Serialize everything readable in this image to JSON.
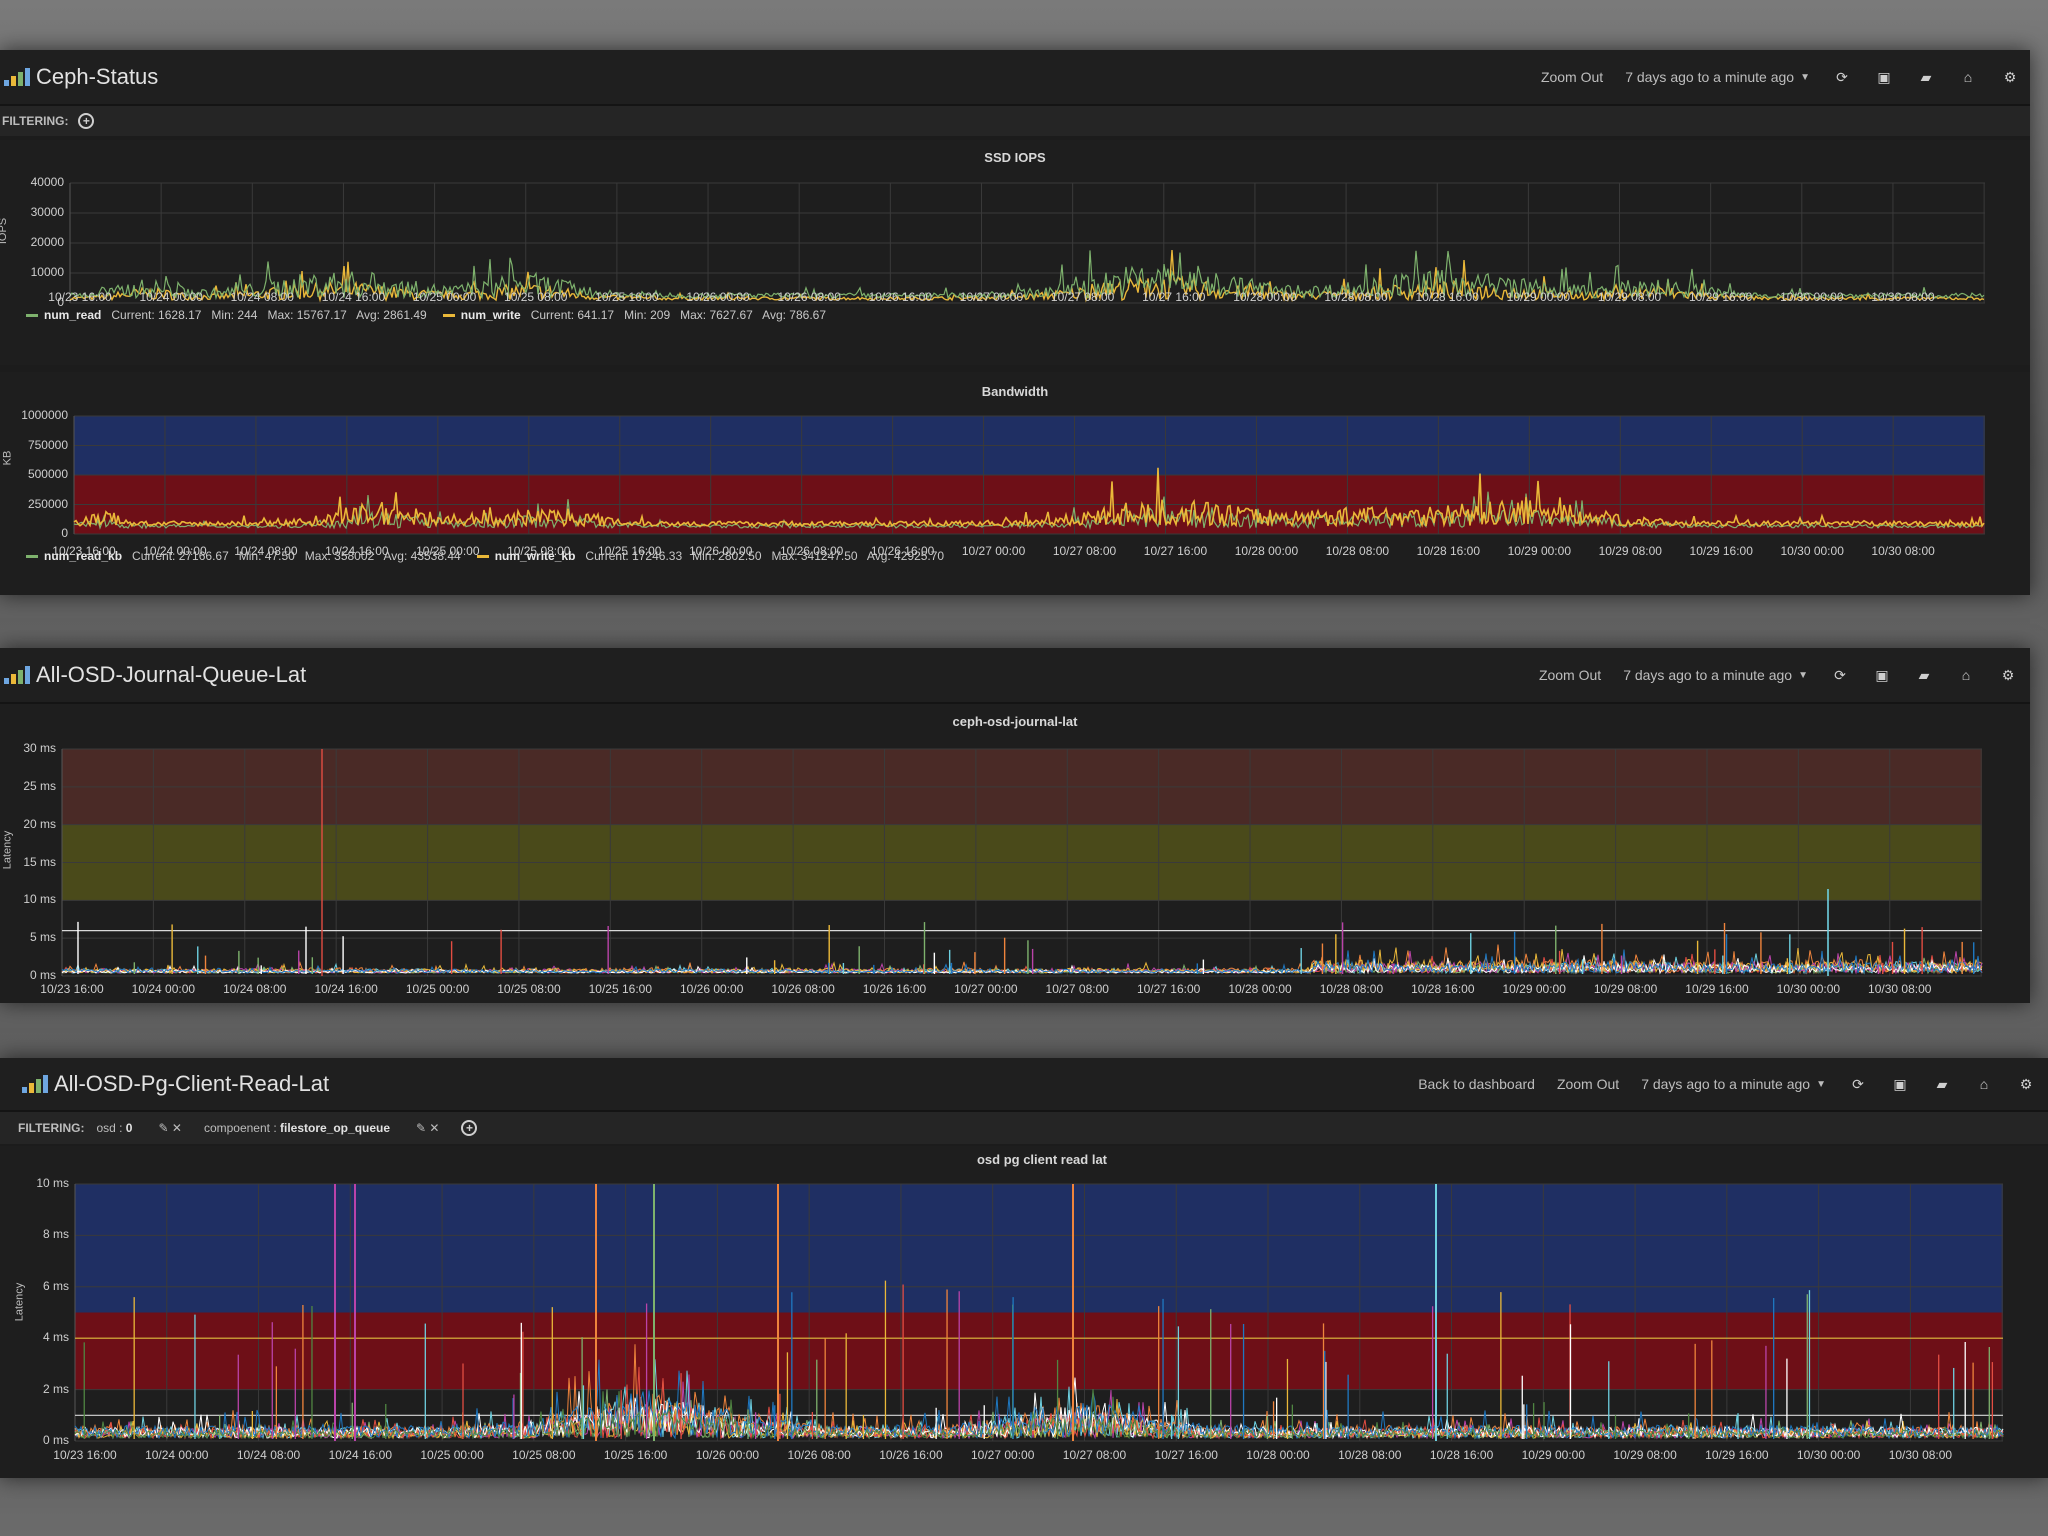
{
  "colors": {
    "green": "#7eb26d",
    "yellow": "#eab839",
    "blue_band": "#1f2f63",
    "red_band": "#6e0f17",
    "brown_band": "#4a2a26",
    "olive_band": "#4a4a1a"
  },
  "xticks": [
    "10/23 16:00",
    "10/24 00:00",
    "10/24 08:00",
    "10/24 16:00",
    "10/25 00:00",
    "10/25 08:00",
    "10/25 16:00",
    "10/26 00:00",
    "10/26 08:00",
    "10/26 16:00",
    "10/27 00:00",
    "10/27 08:00",
    "10/27 16:00",
    "10/28 00:00",
    "10/28 08:00",
    "10/28 16:00",
    "10/29 00:00",
    "10/29 08:00",
    "10/29 16:00",
    "10/30 00:00",
    "10/30 08:00"
  ],
  "dash1": {
    "title": "Ceph-Status",
    "zoom": "Zoom Out",
    "timerange": "7 days ago to a minute ago",
    "filtering": "FILTERING:",
    "panel1": {
      "title": "SSD IOPS",
      "ylabel": "IOPS",
      "yticks": [
        "40000",
        "30000",
        "20000",
        "10000",
        "0"
      ],
      "legend": [
        {
          "name": "num_read",
          "stats": "Current: 1628.17   Min: 244   Max: 15767.17   Avg: 2861.49",
          "color": "#7eb26d"
        },
        {
          "name": "num_write",
          "stats": "Current: 641.17   Min: 209   Max: 7627.67   Avg: 786.67",
          "color": "#eab839"
        }
      ]
    },
    "panel2": {
      "title": "Bandwidth",
      "ylabel": "KB",
      "yticks": [
        "1000000",
        "750000",
        "500000",
        "250000",
        "0"
      ],
      "legend": [
        {
          "name": "num_read_kb",
          "stats": "Current: 27166.67   Min: 47.50   Max: 358002   Avg: 43538.44",
          "color": "#7eb26d"
        },
        {
          "name": "num_write_kb",
          "stats": "Current: 17246.33   Min: 2802.50   Max: 341247.50   Avg: 42925.70",
          "color": "#eab839"
        }
      ]
    }
  },
  "dash2": {
    "title": "All-OSD-Journal-Queue-Lat",
    "zoom": "Zoom Out",
    "timerange": "7 days ago to a minute ago",
    "panel": {
      "title": "ceph-osd-journal-lat",
      "ylabel": "Latency",
      "yticks": [
        "30 ms",
        "25 ms",
        "20 ms",
        "15 ms",
        "10 ms",
        "5 ms",
        "0 ms"
      ]
    }
  },
  "dash3": {
    "title": "All-OSD-Pg-Client-Read-Lat",
    "back": "Back to dashboard",
    "zoom": "Zoom Out",
    "timerange": "7 days ago to a minute ago",
    "filtering": "FILTERING:",
    "filters": [
      {
        "key": "osd :",
        "value": "0"
      },
      {
        "key": "compoenent :",
        "value": "filestore_op_queue"
      }
    ],
    "panel": {
      "title": "osd pg client read lat",
      "ylabel": "Latency",
      "yticks": [
        "10 ms",
        "8 ms",
        "6 ms",
        "4 ms",
        "2 ms",
        "0 ms"
      ]
    }
  }
}
